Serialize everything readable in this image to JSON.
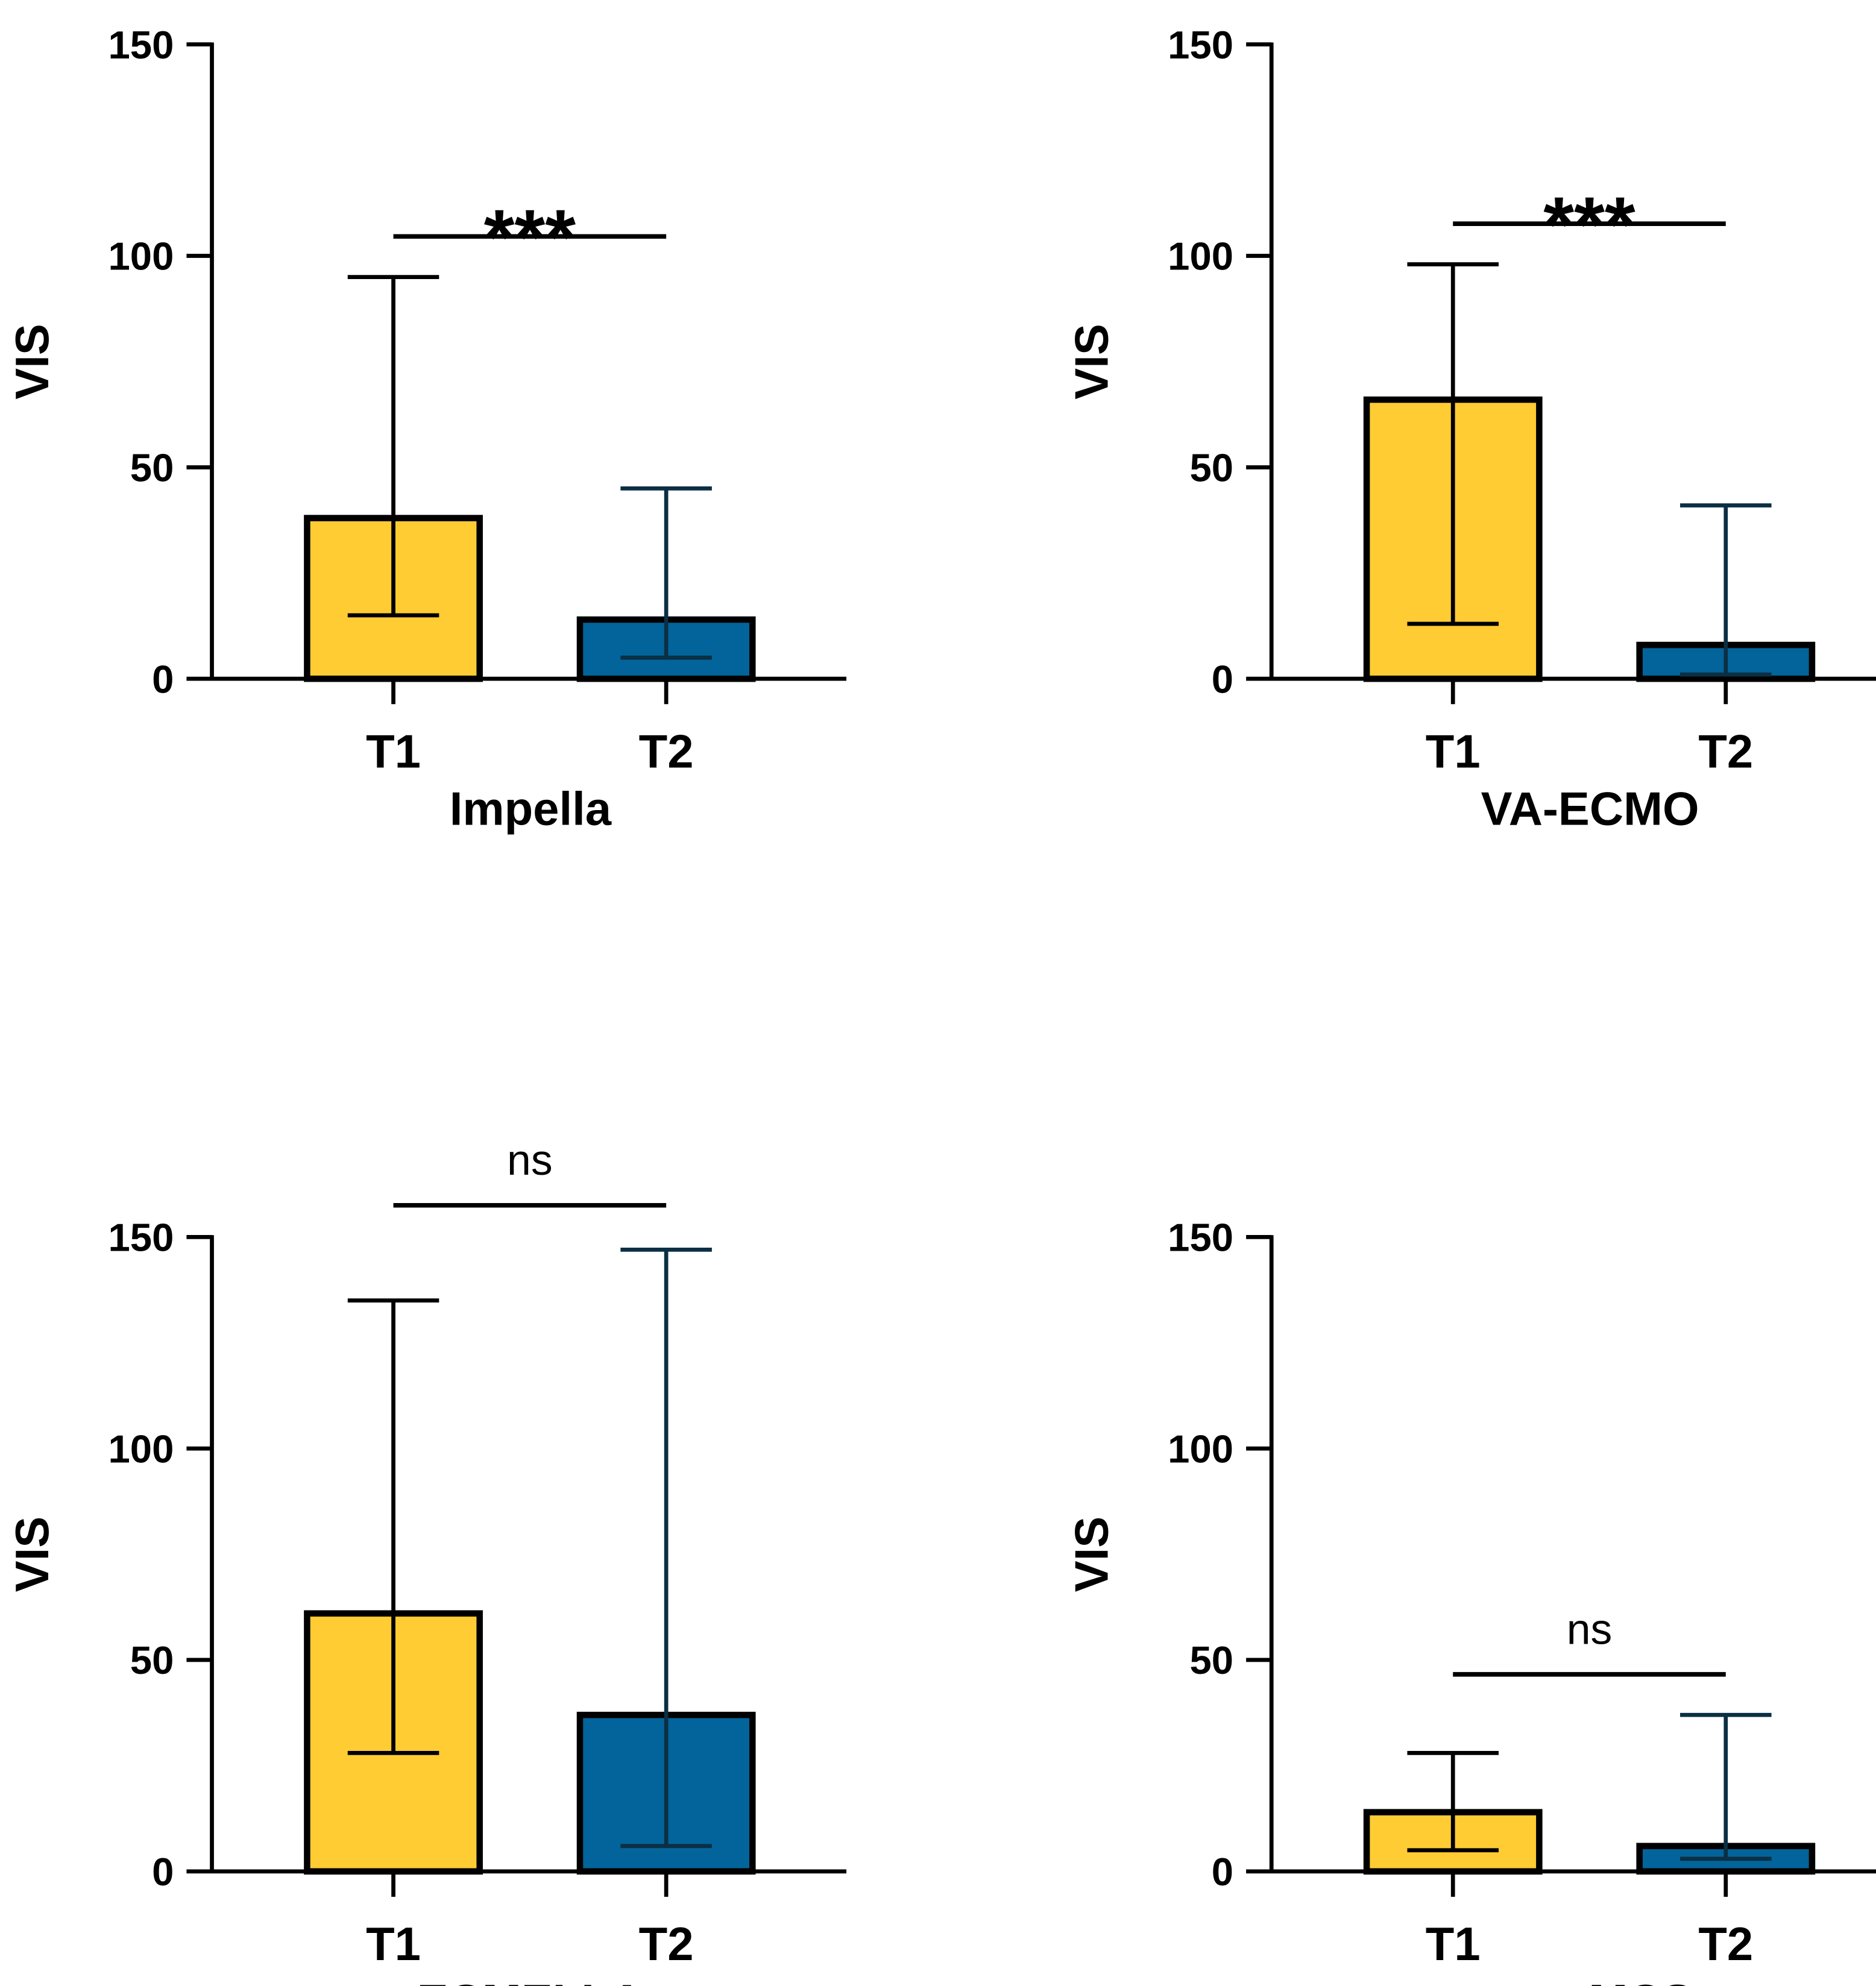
{
  "colors": {
    "t1": "#FFCC33",
    "t2": "#02649A",
    "axis": "#000000",
    "err_t2": "#0B2F43"
  },
  "chart_data": [
    {
      "type": "bar",
      "title": "",
      "xlabel": "Impella",
      "ylabel": "VIS",
      "ylim": [
        0,
        150
      ],
      "yticks": [
        0,
        50,
        100,
        150
      ],
      "categories": [
        "T1",
        "T2"
      ],
      "values": [
        38,
        14
      ],
      "error_low": [
        15,
        5
      ],
      "error_high": [
        95,
        45
      ],
      "significance": "***"
    },
    {
      "type": "bar",
      "title": "",
      "xlabel": "VA-ECMO",
      "ylabel": "VIS",
      "ylim": [
        0,
        150
      ],
      "yticks": [
        0,
        50,
        100,
        150
      ],
      "categories": [
        "T1",
        "T2"
      ],
      "values": [
        66,
        8
      ],
      "error_low": [
        13,
        1
      ],
      "error_high": [
        98,
        41
      ],
      "significance": "***"
    },
    {
      "type": "bar",
      "title": "",
      "xlabel": "ECMELLA",
      "ylabel": "VIS",
      "ylim": [
        0,
        150
      ],
      "yticks": [
        0,
        50,
        100,
        150
      ],
      "categories": [
        "T1",
        "T2"
      ],
      "values": [
        61,
        37
      ],
      "error_low": [
        28,
        6
      ],
      "error_high": [
        135,
        147
      ],
      "significance": "ns"
    },
    {
      "type": "bar",
      "title": "",
      "xlabel": "non-MCS",
      "ylabel": "VIS",
      "ylim": [
        0,
        150
      ],
      "yticks": [
        0,
        50,
        100,
        150
      ],
      "categories": [
        "T1",
        "T2"
      ],
      "values": [
        14,
        6
      ],
      "error_low": [
        5,
        3
      ],
      "error_high": [
        28,
        37
      ],
      "significance": "ns"
    }
  ]
}
